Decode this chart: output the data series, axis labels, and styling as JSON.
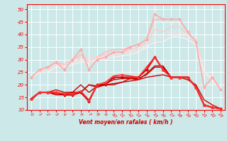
{
  "xlabel": "Vent moyen/en rafales ( km/h )",
  "bg_color": "#cce8e8",
  "grid_color": "#ffffff",
  "tick_color": "#ff0000",
  "xlabel_color": "#cc0000",
  "ylim": [
    10,
    52
  ],
  "xlim": [
    -0.5,
    23.5
  ],
  "yticks": [
    10,
    15,
    20,
    25,
    30,
    35,
    40,
    45,
    50
  ],
  "xticks": [
    0,
    1,
    2,
    3,
    4,
    5,
    6,
    7,
    8,
    9,
    10,
    11,
    12,
    13,
    14,
    15,
    16,
    17,
    18,
    19,
    20,
    21,
    22,
    23
  ],
  "series": [
    {
      "x": [
        0,
        1,
        2,
        3,
        4,
        5,
        6,
        7,
        8,
        9,
        10,
        11,
        12,
        13,
        14,
        15,
        16,
        17,
        18,
        19,
        20,
        21,
        22,
        23
      ],
      "y": [
        23,
        26,
        27,
        29,
        26,
        30,
        34,
        26,
        30,
        31,
        33,
        33,
        35,
        36,
        38,
        48,
        46,
        46,
        46,
        41,
        37,
        19,
        23,
        18
      ],
      "color": "#ffaaaa",
      "lw": 1.2,
      "marker": "D",
      "ms": 2.0
    },
    {
      "x": [
        0,
        1,
        2,
        3,
        4,
        5,
        6,
        7,
        8,
        9,
        10,
        11,
        12,
        13,
        14,
        15,
        16,
        17,
        18,
        19,
        20,
        21,
        22,
        23
      ],
      "y": [
        23,
        26,
        27,
        29,
        28,
        30,
        32,
        29,
        31,
        33,
        34,
        34,
        35,
        36,
        38,
        46,
        46,
        46,
        46,
        41,
        37,
        25,
        23,
        18
      ],
      "color": "#ffb8b8",
      "lw": 1.0,
      "marker": null,
      "ms": 0
    },
    {
      "x": [
        0,
        1,
        2,
        3,
        4,
        5,
        6,
        7,
        8,
        9,
        10,
        11,
        12,
        13,
        14,
        15,
        16,
        17,
        18,
        19,
        20,
        21,
        22,
        23
      ],
      "y": [
        23,
        26,
        26,
        28,
        28,
        30,
        31,
        30,
        31,
        32,
        33,
        33,
        34,
        35,
        37,
        42,
        41,
        43,
        43,
        40,
        38,
        25,
        23,
        18
      ],
      "color": "#ffcccc",
      "lw": 1.0,
      "marker": null,
      "ms": 0
    },
    {
      "x": [
        0,
        1,
        2,
        3,
        4,
        5,
        6,
        7,
        8,
        9,
        10,
        11,
        12,
        13,
        14,
        15,
        16,
        17,
        18,
        19,
        20,
        21,
        22,
        23
      ],
      "y": [
        23,
        26,
        26,
        28,
        27,
        29,
        30,
        30,
        30.5,
        31.5,
        32,
        32.5,
        33,
        34,
        36,
        39,
        39,
        41,
        41,
        40,
        37,
        25,
        23,
        18
      ],
      "color": "#ffdddd",
      "lw": 1.0,
      "marker": null,
      "ms": 0
    },
    {
      "x": [
        0,
        1,
        2,
        3,
        4,
        5,
        6,
        7,
        8,
        9,
        10,
        11,
        12,
        13,
        14,
        15,
        16,
        17,
        18,
        19,
        20,
        21,
        22,
        23
      ],
      "y": [
        23,
        25,
        25,
        27,
        27,
        28,
        29,
        29,
        30,
        30.5,
        31,
        31.5,
        32,
        33,
        35,
        37,
        37,
        39,
        39,
        38,
        36,
        25,
        22,
        18
      ],
      "color": "#ffeeee",
      "lw": 1.0,
      "marker": null,
      "ms": 0
    },
    {
      "x": [
        0,
        1,
        2,
        3,
        4,
        5,
        6,
        7,
        8,
        9,
        10,
        11,
        12,
        13,
        14,
        15,
        16,
        17,
        18,
        19,
        20,
        21,
        22,
        23
      ],
      "y": [
        14.5,
        17,
        17,
        17,
        16,
        16,
        17,
        13.5,
        20,
        20,
        23,
        23,
        23,
        23,
        26,
        31,
        26,
        23,
        23,
        23,
        19,
        12,
        11,
        10.5
      ],
      "color": "#cc0000",
      "lw": 1.5,
      "marker": "D",
      "ms": 2.0
    },
    {
      "x": [
        0,
        1,
        2,
        3,
        4,
        5,
        6,
        7,
        8,
        9,
        10,
        11,
        12,
        13,
        14,
        15,
        16,
        17,
        18,
        19,
        20,
        21,
        22,
        23
      ],
      "y": [
        14.5,
        17,
        17,
        17,
        16.5,
        16.5,
        17.5,
        14,
        20,
        21,
        23.5,
        24,
        23.5,
        23,
        27,
        31,
        26,
        23,
        23,
        23,
        19,
        12,
        11,
        10.5
      ],
      "color": "#ff3333",
      "lw": 1.2,
      "marker": "^",
      "ms": 2.5
    },
    {
      "x": [
        0,
        1,
        2,
        3,
        4,
        5,
        6,
        7,
        8,
        9,
        10,
        11,
        12,
        13,
        14,
        15,
        16,
        17,
        18,
        19,
        20,
        21,
        22,
        23
      ],
      "y": [
        14,
        17,
        17,
        18,
        17,
        17,
        20,
        17,
        19.5,
        20.5,
        22,
        22.5,
        22.5,
        22,
        24.5,
        27.5,
        27.5,
        23,
        23,
        23,
        19,
        12,
        11,
        10.5
      ],
      "color": "#cc0000",
      "lw": 1.0,
      "marker": null,
      "ms": 0
    },
    {
      "x": [
        0,
        1,
        2,
        3,
        4,
        5,
        6,
        7,
        8,
        9,
        10,
        11,
        12,
        13,
        14,
        15,
        16,
        17,
        18,
        19,
        20,
        21,
        22,
        23
      ],
      "y": [
        14.5,
        17,
        17,
        16,
        16,
        17,
        17,
        20,
        19.5,
        20,
        20,
        21,
        22.5,
        22.5,
        24,
        27,
        27,
        23,
        23,
        23,
        19,
        12,
        11,
        10.5
      ],
      "color": "#cc0000",
      "lw": 1.0,
      "marker": null,
      "ms": 0
    },
    {
      "x": [
        0,
        1,
        2,
        3,
        4,
        5,
        6,
        7,
        8,
        9,
        10,
        11,
        12,
        13,
        14,
        15,
        16,
        17,
        18,
        19,
        20,
        21,
        22,
        23
      ],
      "y": [
        14.5,
        17,
        17,
        16.5,
        16.5,
        17,
        17,
        20,
        19,
        20,
        20.5,
        21,
        21.5,
        22,
        23,
        23.5,
        24,
        23,
        23,
        22,
        20,
        14,
        12,
        10.5
      ],
      "color": "#cc0000",
      "lw": 1.0,
      "marker": null,
      "ms": 0
    }
  ]
}
